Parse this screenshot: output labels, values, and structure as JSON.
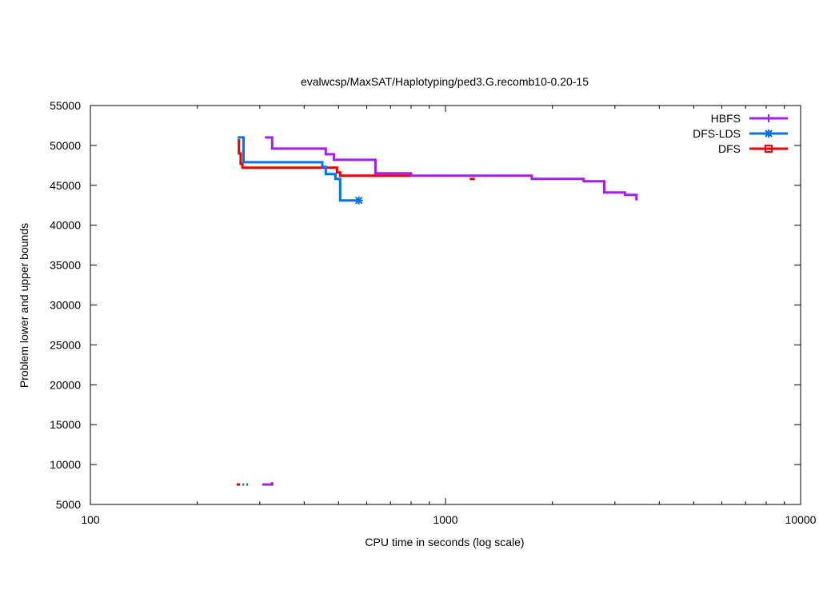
{
  "chart_data": {
    "type": "line",
    "title": "evalwcsp/MaxSAT/Haplotyping/ped3.G.recomb10-0.20-15",
    "xlabel": "CPU time in seconds (log scale)",
    "ylabel": "Problem lower and upper bounds",
    "x_scale": "log",
    "xlim": [
      100,
      10000
    ],
    "ylim": [
      5000,
      55000
    ],
    "x_ticks": [
      "100",
      "1000",
      "10000"
    ],
    "y_ticks": [
      "5000",
      "10000",
      "15000",
      "20000",
      "25000",
      "30000",
      "35000",
      "40000",
      "45000",
      "50000",
      "55000"
    ],
    "grid": false,
    "legend_position": "top-right",
    "series": [
      {
        "name": "HBFS",
        "color": "#a020f0",
        "marker": "plus",
        "upper": [
          [
            310,
            51000
          ],
          [
            325,
            51000
          ],
          [
            325,
            49600
          ],
          [
            460,
            49600
          ],
          [
            460,
            48900
          ],
          [
            485,
            48900
          ],
          [
            485,
            48200
          ],
          [
            635,
            48200
          ],
          [
            635,
            46500
          ],
          [
            800,
            46500
          ],
          [
            800,
            46200
          ],
          [
            1750,
            46200
          ],
          [
            1750,
            45800
          ],
          [
            2450,
            45800
          ],
          [
            2450,
            45500
          ],
          [
            2800,
            45500
          ],
          [
            2800,
            44100
          ],
          [
            3200,
            44100
          ],
          [
            3200,
            43800
          ],
          [
            3450,
            43800
          ],
          [
            3450,
            43100
          ]
        ],
        "lower": [
          [
            305,
            7500
          ],
          [
            325,
            7500
          ],
          [
            325,
            7800
          ]
        ]
      },
      {
        "name": "DFS-LDS",
        "color": "#0072f0",
        "marker": "star",
        "upper": [
          [
            260,
            51000
          ],
          [
            270,
            51000
          ],
          [
            270,
            47900
          ],
          [
            450,
            47900
          ],
          [
            450,
            47300
          ],
          [
            460,
            47300
          ],
          [
            460,
            46400
          ],
          [
            490,
            46400
          ],
          [
            490,
            45800
          ],
          [
            505,
            45800
          ],
          [
            505,
            43100
          ],
          [
            570,
            43100
          ]
        ],
        "lower": [
          [
            268,
            7500
          ],
          [
            271,
            7500
          ]
        ]
      },
      {
        "name": "DFS",
        "color": "#ee0000",
        "marker": "box",
        "upper": [
          [
            262,
            50800
          ],
          [
            262,
            49000
          ],
          [
            265,
            49000
          ],
          [
            265,
            47700
          ],
          [
            268,
            47700
          ],
          [
            268,
            47200
          ],
          [
            495,
            47200
          ],
          [
            495,
            46600
          ],
          [
            505,
            46600
          ],
          [
            505,
            46200
          ],
          [
            800,
            46200
          ]
        ],
        "extra_segments": [
          [
            [
              1170,
              45800
            ],
            [
              1210,
              45800
            ]
          ]
        ],
        "lower": [
          [
            258,
            7500
          ],
          [
            264,
            7500
          ]
        ]
      }
    ]
  }
}
